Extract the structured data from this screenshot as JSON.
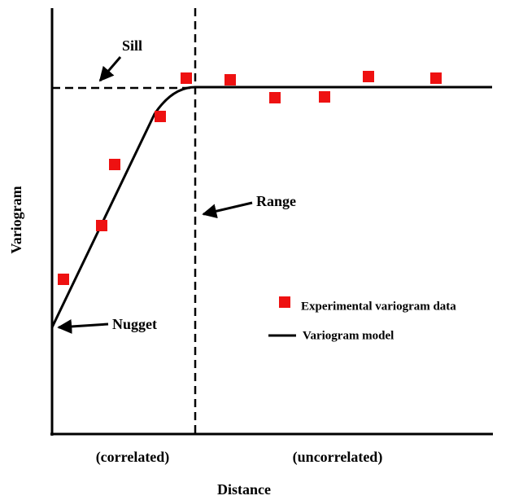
{
  "axis_label_y": "Variogram",
  "axis_label_x": "Distance",
  "annotations": {
    "sill": "Sill",
    "range": "Range",
    "nugget": "Nugget"
  },
  "regions": {
    "left": "(correlated)",
    "right": "(uncorrelated)"
  },
  "legend": {
    "points": "Experimental variogram data",
    "line": "Variogram model"
  }
}
